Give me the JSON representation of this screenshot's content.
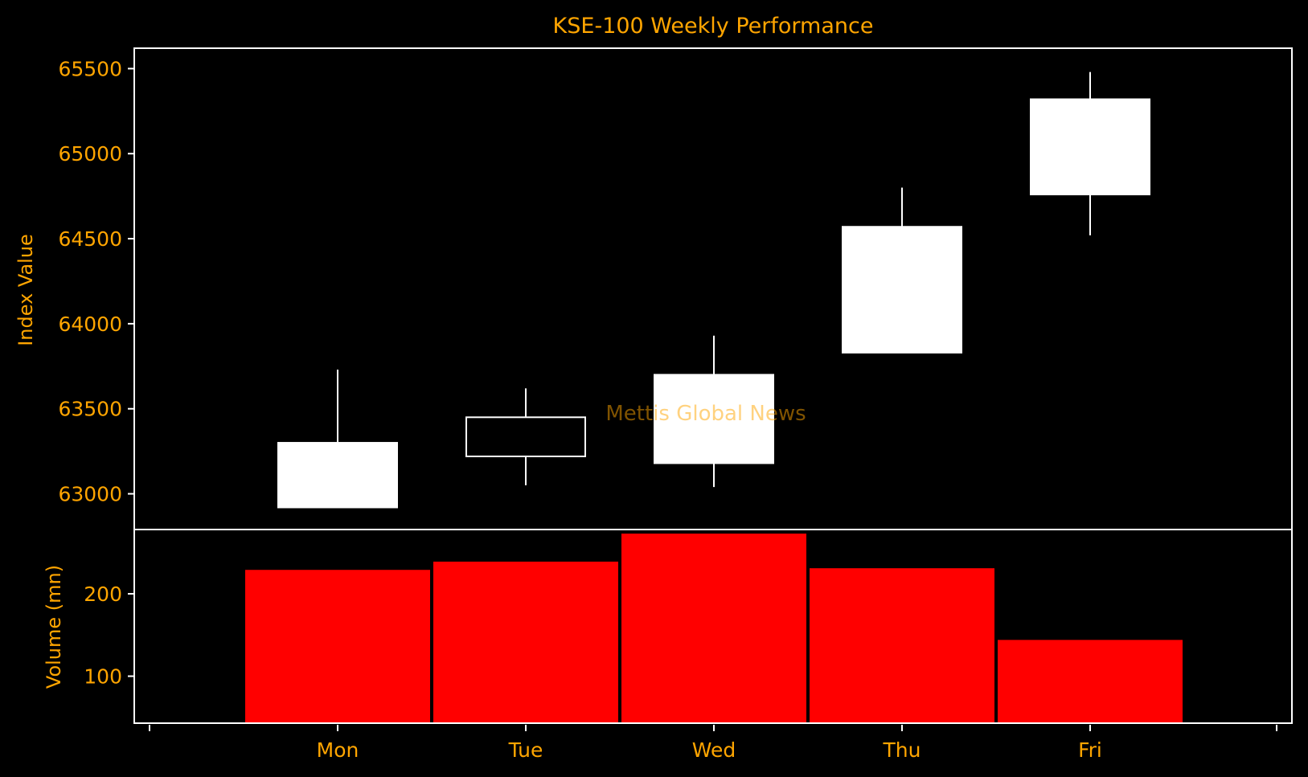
{
  "chart_data": [
    {
      "type": "candlestick",
      "title": "KSE-100 Weekly Performance",
      "ylabel": "Index Value",
      "categories": [
        "Mon",
        "Tue",
        "Wed",
        "Thu",
        "Fri"
      ],
      "ohlc": [
        {
          "open": 62920,
          "high": 63730,
          "low": 62920,
          "close": 63300
        },
        {
          "open": 63450,
          "high": 63620,
          "low": 63050,
          "close": 63220
        },
        {
          "open": 63180,
          "high": 63930,
          "low": 63040,
          "close": 63700
        },
        {
          "open": 63830,
          "high": 64800,
          "low": 63830,
          "close": 64570
        },
        {
          "open": 64760,
          "high": 65480,
          "low": 64520,
          "close": 65320
        }
      ],
      "yticks": [
        63000,
        63500,
        64000,
        64500,
        65000,
        65500
      ],
      "ylim": [
        62790,
        65620
      ]
    },
    {
      "type": "bar",
      "ylabel": "Volume (mn)",
      "categories": [
        "Mon",
        "Tue",
        "Wed",
        "Thu",
        "Fri"
      ],
      "values": [
        230,
        240,
        274,
        232,
        145
      ],
      "yticks": [
        100,
        200
      ],
      "ylim": [
        43,
        278
      ]
    }
  ],
  "watermark": "Mettis Global News",
  "colors": {
    "background": "#000000",
    "text": "#FFA500",
    "axes": "#FFFFFF",
    "candle_up": "#FFFFFF",
    "candle_down": "#000000",
    "bar": "#FF0000"
  }
}
